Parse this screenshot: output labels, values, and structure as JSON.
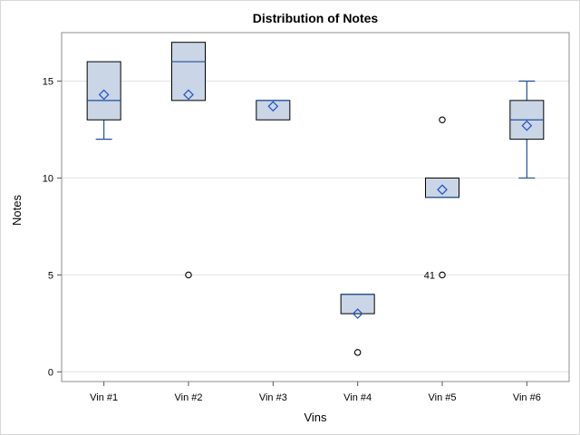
{
  "chart_data": {
    "type": "box",
    "title": "Distribution of Notes",
    "xlabel": "Vins",
    "ylabel": "Notes",
    "ylim": [
      -0.5,
      17.5
    ],
    "yticks": [
      0,
      5,
      10,
      15
    ],
    "grid": true,
    "colors": {
      "box_fill": "#cad6e6",
      "median": "#1f4f9a",
      "mean": "#2a57c6"
    },
    "categories": [
      "Vin #1",
      "Vin #2",
      "Vin #3",
      "Vin #4",
      "Vin #5",
      "Vin #6"
    ],
    "boxes": [
      {
        "category": "Vin #1",
        "whisker_low": 12,
        "q1": 13,
        "median": 14,
        "q3": 16,
        "whisker_high": 16,
        "mean": 14.3,
        "outliers": []
      },
      {
        "category": "Vin #2",
        "whisker_low": 14,
        "q1": 14,
        "median": 16,
        "q3": 17,
        "whisker_high": 17,
        "mean": 14.3,
        "outliers": [
          {
            "value": 5,
            "label": ""
          }
        ]
      },
      {
        "category": "Vin #3",
        "whisker_low": 13,
        "q1": 13,
        "median": 14,
        "q3": 14,
        "whisker_high": 14,
        "mean": 13.7,
        "outliers": []
      },
      {
        "category": "Vin #4",
        "whisker_low": 3,
        "q1": 3,
        "median": 4,
        "q3": 4,
        "whisker_high": 4,
        "mean": 3.0,
        "outliers": [
          {
            "value": 1,
            "label": ""
          }
        ]
      },
      {
        "category": "Vin #5",
        "whisker_low": 9,
        "q1": 9,
        "median": 9,
        "q3": 10,
        "whisker_high": 10,
        "mean": 9.4,
        "outliers": [
          {
            "value": 13,
            "label": ""
          },
          {
            "value": 5,
            "label": "41"
          }
        ]
      },
      {
        "category": "Vin #6",
        "whisker_low": 10,
        "q1": 12,
        "median": 13,
        "q3": 14,
        "whisker_high": 15,
        "mean": 12.7,
        "outliers": []
      }
    ]
  }
}
